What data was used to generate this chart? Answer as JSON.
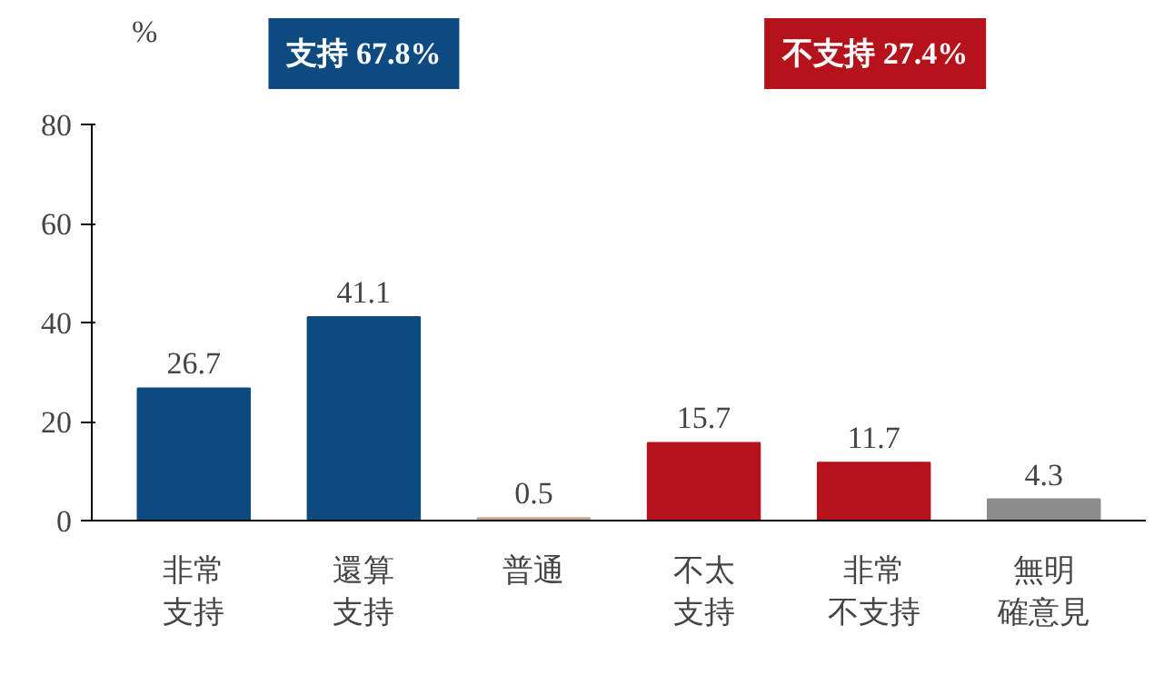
{
  "chart_data": {
    "type": "bar",
    "ylabel": "%",
    "categories": [
      "非常支持",
      "還算支持",
      "普通",
      "不太支持",
      "非常不支持",
      "無明確意見"
    ],
    "values": [
      26.7,
      41.1,
      0.5,
      15.7,
      11.7,
      4.3
    ],
    "colors": [
      "#0d4a80",
      "#0d4a80",
      "#c9a48e",
      "#b5121b",
      "#b5121b",
      "#8c8c8c"
    ],
    "ylim": [
      0,
      80
    ],
    "yticks": [
      0,
      20,
      40,
      60,
      80
    ],
    "grid": false,
    "data_labels": true,
    "annotations": [
      "支持 67.8%",
      "不支持 27.4%"
    ]
  }
}
